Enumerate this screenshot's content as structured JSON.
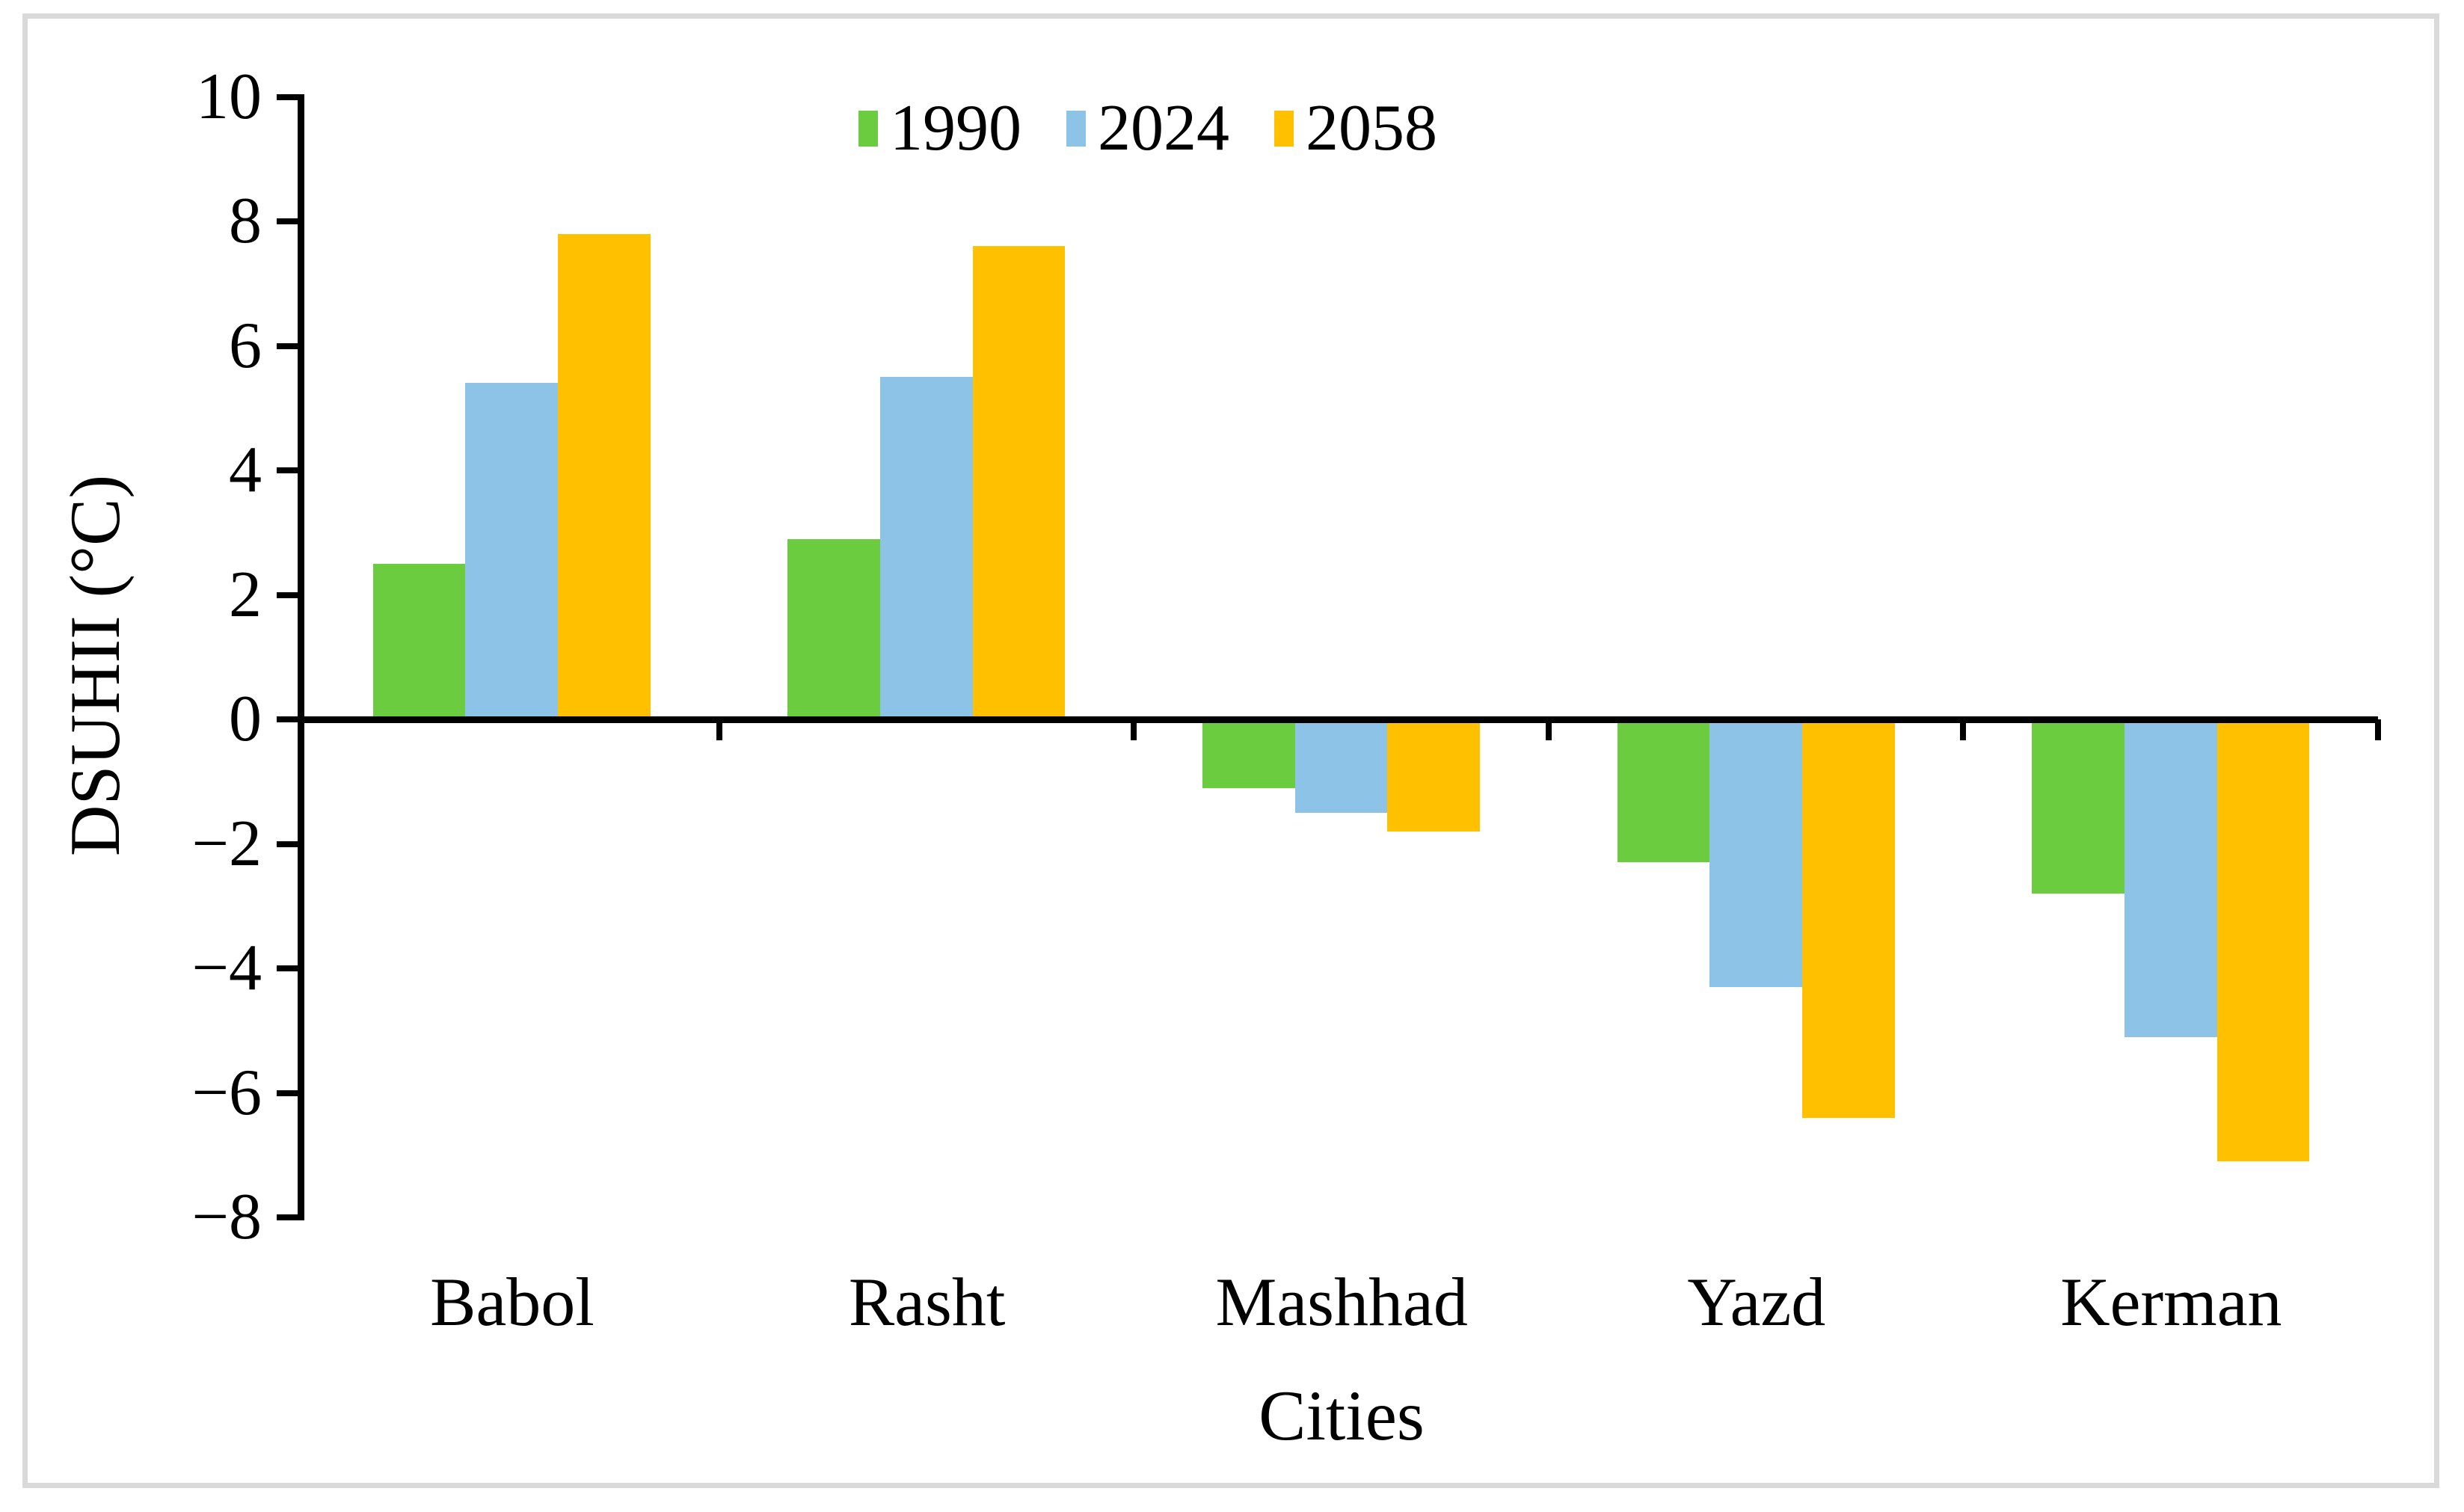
{
  "figure": {
    "background_color": "#ffffff",
    "border_color": "#d9d9d9",
    "axis_color": "#000000"
  },
  "chart_data": {
    "type": "bar",
    "title": "",
    "categories": [
      "Babol",
      "Rasht",
      "Mashhad",
      "Yazd",
      "Kerman"
    ],
    "series": [
      {
        "name": "1990",
        "color": "#6ccc40",
        "values": [
          2.5,
          2.9,
          -1.1,
          -2.3,
          -2.8
        ]
      },
      {
        "name": "2024",
        "color": "#8dc3e6",
        "values": [
          5.4,
          5.5,
          -1.5,
          -4.3,
          -5.1
        ]
      },
      {
        "name": "2058",
        "color": "#ffc000",
        "values": [
          7.8,
          7.6,
          -1.8,
          -6.4,
          -7.1
        ]
      }
    ],
    "xlabel": "Cities",
    "ylabel": "DSUHII (°C)",
    "ylim": [
      -8,
      10
    ],
    "y_ticks": [
      10,
      8,
      6,
      4,
      2,
      0,
      -2,
      -4,
      -6,
      -8
    ],
    "grid": false,
    "legend_position": "top-center"
  }
}
